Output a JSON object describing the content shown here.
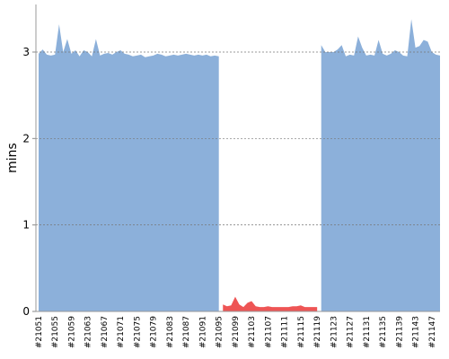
{
  "chart_data": {
    "type": "area",
    "y_label": "mins",
    "categories": [
      "#21051",
      null,
      null,
      null,
      "#21055",
      null,
      null,
      null,
      "#21059",
      null,
      null,
      null,
      "#21063",
      null,
      null,
      null,
      "#21067",
      null,
      null,
      null,
      "#21071",
      null,
      null,
      null,
      "#21075",
      null,
      null,
      null,
      "#21079",
      null,
      null,
      null,
      "#21083",
      null,
      null,
      null,
      "#21087",
      null,
      null,
      null,
      "#21091",
      null,
      null,
      null,
      "#21095",
      null,
      null,
      null,
      "#21099",
      null,
      null,
      null,
      "#21103",
      null,
      null,
      null,
      "#21107",
      null,
      null,
      null,
      "#21111",
      null,
      null,
      null,
      "#21115",
      null,
      null,
      null,
      "#21119",
      null,
      null,
      null,
      "#21123",
      null,
      null,
      null,
      "#21127",
      null,
      null,
      null,
      "#21131",
      null,
      null,
      null,
      "#21135",
      null,
      null,
      null,
      "#21139",
      null,
      null,
      null,
      "#21143",
      null,
      null,
      null,
      "#21147",
      null,
      null
    ],
    "series": [
      {
        "color": "#8cb0da",
        "values": [
          2.98,
          3.03,
          2.97,
          2.96,
          2.97,
          3.32,
          3.0,
          3.15,
          2.98,
          3.02,
          2.95,
          3.02,
          3.0,
          2.95,
          3.15,
          2.96,
          2.98,
          2.99,
          2.97,
          3.0,
          3.02,
          2.98,
          2.97,
          2.95,
          2.96,
          2.97,
          2.94,
          2.95,
          2.96,
          2.98,
          2.97,
          2.95,
          2.96,
          2.97,
          2.96,
          2.97,
          2.98,
          2.97,
          2.96,
          2.97,
          2.96,
          2.97,
          2.95,
          2.96,
          2.95,
          null,
          null,
          null,
          null,
          null,
          null,
          null,
          null,
          null,
          null,
          null,
          null,
          null,
          null,
          null,
          null,
          null,
          null,
          null,
          null,
          null,
          null,
          null,
          null,
          3.08,
          3.0,
          3.0,
          3.0,
          3.03,
          3.08,
          2.95,
          2.97,
          2.96,
          3.18,
          3.05,
          2.96,
          2.97,
          2.96,
          3.14,
          2.98,
          2.96,
          2.98,
          3.02,
          3.0,
          2.96,
          2.95,
          3.38,
          3.05,
          3.07,
          3.14,
          3.12,
          3.0,
          2.97,
          2.96
        ]
      },
      {
        "color": "#ee5555",
        "values": [
          null,
          null,
          null,
          null,
          null,
          null,
          null,
          null,
          null,
          null,
          null,
          null,
          null,
          null,
          null,
          null,
          null,
          null,
          null,
          null,
          null,
          null,
          null,
          null,
          null,
          null,
          null,
          null,
          null,
          null,
          null,
          null,
          null,
          null,
          null,
          null,
          null,
          null,
          null,
          null,
          null,
          null,
          null,
          null,
          null,
          0.08,
          0.06,
          0.07,
          0.17,
          0.08,
          0.05,
          0.1,
          0.12,
          0.06,
          0.05,
          0.05,
          0.06,
          0.05,
          0.05,
          0.05,
          0.05,
          0.05,
          0.06,
          0.06,
          0.07,
          0.05,
          0.05,
          0.05,
          0.05,
          null,
          null,
          null,
          null,
          null,
          null,
          null,
          null,
          null,
          null,
          null,
          null,
          null,
          null,
          null,
          null,
          null,
          null,
          null,
          null,
          null,
          null,
          null,
          null,
          null,
          null,
          null,
          null,
          null,
          null
        ]
      }
    ],
    "ylim": [
      0,
      3.55
    ],
    "yticks": [
      0,
      1,
      2,
      3
    ],
    "grid": true
  }
}
